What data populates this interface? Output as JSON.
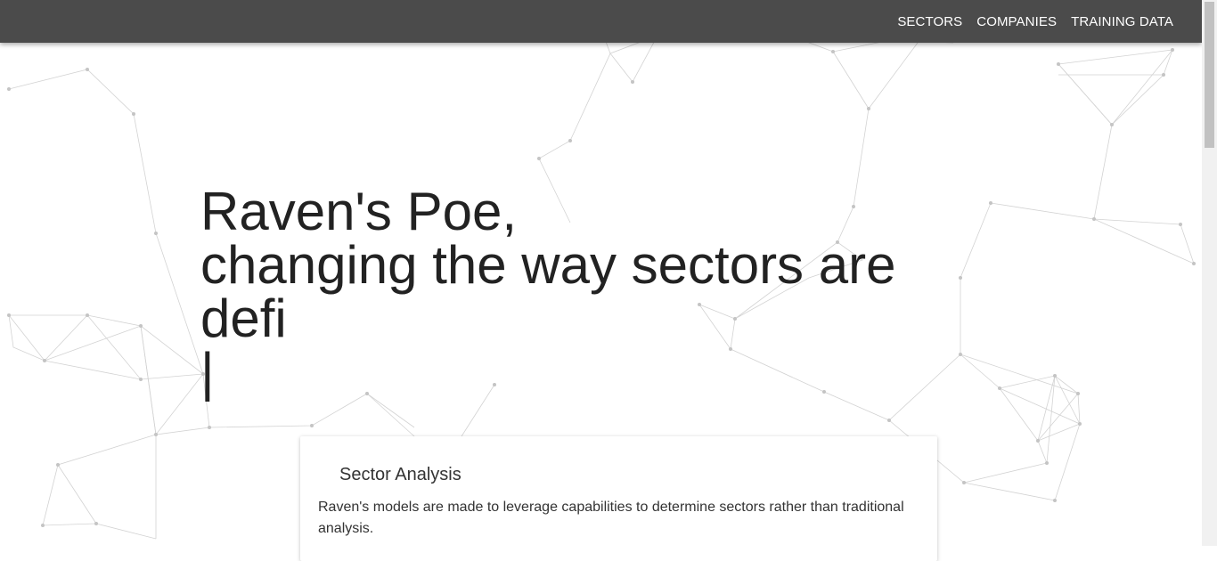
{
  "nav": {
    "items": [
      {
        "label": "SECTORS"
      },
      {
        "label": "COMPANIES"
      },
      {
        "label": "TRAINING DATA"
      }
    ]
  },
  "hero": {
    "line1": "Raven's Poe,",
    "line2": "changing the way sectors are",
    "line3": "defi",
    "cursor": "|"
  },
  "card": {
    "title": "Sector Analysis",
    "text": "Raven's models are made to leverage capabilities to determine sectors rather than traditional analysis."
  },
  "colors": {
    "navbar": "#4b4b4b",
    "nav_text": "#ffffff",
    "background": "#ffffff",
    "network_lines": "#bdbdbd"
  }
}
